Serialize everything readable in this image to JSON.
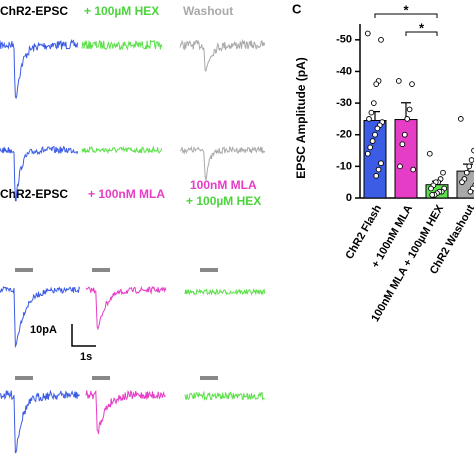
{
  "panel_b": {
    "labels": [
      "ChR2-EPSC",
      "+ 100µM HEX",
      "Washout"
    ]
  },
  "panel_d": {
    "labels": [
      "ChR2-EPSC",
      "+ 100nM MLA",
      "100nM MLA",
      "+ 100µM HEX"
    ],
    "scale_y": "10pA",
    "scale_x": "1s"
  },
  "chart_data": {
    "type": "bar",
    "panel": "C",
    "ylabel": "EPSC Amplitude (pA)",
    "categories": [
      "ChR2 Flash",
      "+ 100nM MLA",
      "100nM MLA + 100µM HEX",
      "ChR2 Washout"
    ],
    "colors": [
      "#3d5ce6",
      "#e63dc6",
      "#5ee04c",
      "#a9a9a9"
    ],
    "values": [
      -24.5,
      -24.8,
      -4.2,
      -8.5
    ],
    "errors": [
      2.8,
      5.3,
      1.1,
      2.2
    ],
    "points": [
      [
        -52,
        -50,
        -37,
        -36,
        -30,
        -27,
        -25,
        -24,
        -23,
        -22,
        -20,
        -18,
        -16,
        -14,
        -11,
        -9,
        -7
      ],
      [
        -37,
        -36,
        -28,
        -25,
        -20,
        -17,
        -10,
        -9
      ],
      [
        -14,
        -8,
        -6,
        -5,
        -5,
        -4,
        -3,
        -3,
        -2,
        -2,
        -1.5,
        -1,
        -1
      ],
      [
        -25,
        -15,
        -12,
        -10,
        -8,
        -6,
        -5,
        -4,
        -3,
        -2
      ]
    ],
    "significance": [
      "*",
      "*"
    ],
    "ylim": [
      0,
      -55
    ],
    "yticks": [
      0,
      -10,
      -20,
      -30,
      -40,
      -50
    ]
  }
}
